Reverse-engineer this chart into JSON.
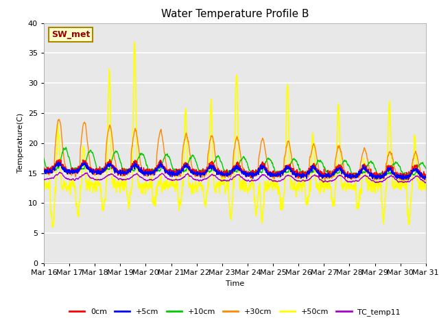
{
  "title": "Water Temperature Profile B",
  "xlabel": "Time",
  "ylabel": "Temperature(C)",
  "ylim": [
    0,
    40
  ],
  "yticks": [
    0,
    5,
    10,
    15,
    20,
    25,
    30,
    35,
    40
  ],
  "figure_bg": "#ffffff",
  "plot_bg_color": "#e8e8e8",
  "grid_color": "#ffffff",
  "series": {
    "0cm": {
      "color": "#ff0000",
      "lw": 1.0
    },
    "+5cm": {
      "color": "#0000ff",
      "lw": 1.0
    },
    "+10cm": {
      "color": "#00cc00",
      "lw": 1.0
    },
    "+30cm": {
      "color": "#ff8800",
      "lw": 1.0
    },
    "+50cm": {
      "color": "#ffff00",
      "lw": 1.2
    },
    "TC_temp11": {
      "color": "#aa00cc",
      "lw": 1.0
    }
  },
  "annotation": {
    "text": "SW_met",
    "fontsize": 9,
    "color": "#990000",
    "bg": "#ffffcc",
    "border": "#aa8800"
  },
  "xticklabels": [
    "Mar 16",
    "Mar 17",
    "Mar 18",
    "Mar 19",
    "Mar 20",
    "Mar 21",
    "Mar 22",
    "Mar 23",
    "Mar 24",
    "Mar 25",
    "Mar 26",
    "Mar 27",
    "Mar 28",
    "Mar 29",
    "Mar 30",
    "Mar 31"
  ],
  "fontsize_title": 11,
  "fontsize_axes": 8,
  "fontsize_ticks": 8
}
